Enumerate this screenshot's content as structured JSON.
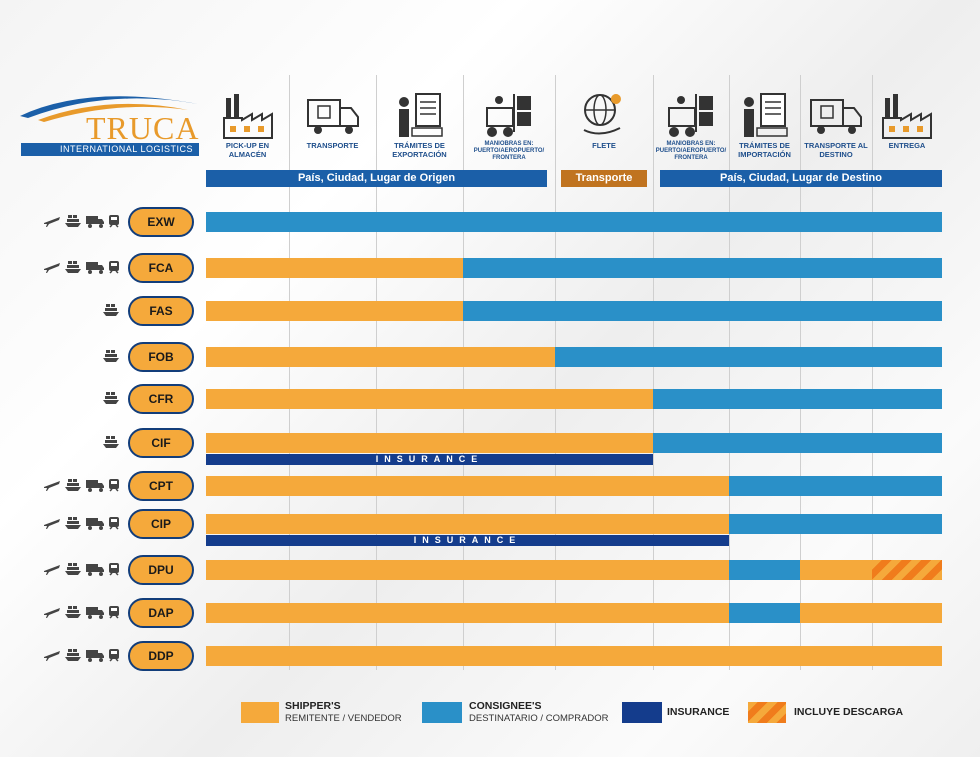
{
  "logo": {
    "name": "TRUCA",
    "subtitle": "INTERNATIONAL LOGISTICS"
  },
  "columns": [
    "PICK-UP EN ALMACÉN",
    "TRANSPORTE",
    "TRÁMITES DE EXPORTACIÓN",
    "MANIOBRAS EN: PUERTO/AEROPUERTO/ FRONTERA",
    "FLETE",
    "MANIOBRAS EN: PUERTO/AEROPUERTO/ FRONTERA",
    "TRÁMITES DE IMPORTACIÓN",
    "TRANSPORTE AL DESTINO",
    "ENTREGA"
  ],
  "bands": {
    "origin": "País, Ciudad, Lugar de Origen",
    "transport": "Transporte",
    "destination": "País, Ciudad, Lugar de Destino"
  },
  "insurance_label": "INSURANCE",
  "colors": {
    "shipper": "#f5a93b",
    "consignee": "#2a90c8",
    "insurance": "#143c8c",
    "band": "#1b5fa8",
    "transport_band": "#c0731f"
  },
  "incoterms": [
    {
      "code": "EXW",
      "modes": [
        "plane",
        "ship",
        "truck",
        "train"
      ],
      "split": 0,
      "insurance": null,
      "segments": [
        [
          "consignee",
          0,
          9
        ]
      ]
    },
    {
      "code": "FCA",
      "modes": [
        "plane",
        "ship",
        "truck",
        "train"
      ],
      "segments": [
        [
          "shipper",
          0,
          3
        ],
        [
          "consignee",
          3,
          9
        ]
      ]
    },
    {
      "code": "FAS",
      "modes": [
        "ship"
      ],
      "segments": [
        [
          "shipper",
          0,
          3
        ],
        [
          "consignee",
          3,
          9
        ]
      ]
    },
    {
      "code": "FOB",
      "modes": [
        "ship"
      ],
      "segments": [
        [
          "shipper",
          0,
          4
        ],
        [
          "consignee",
          4,
          9
        ]
      ]
    },
    {
      "code": "CFR",
      "modes": [
        "ship"
      ],
      "segments": [
        [
          "shipper",
          0,
          5
        ],
        [
          "consignee",
          5,
          9
        ]
      ]
    },
    {
      "code": "CIF",
      "modes": [
        "ship"
      ],
      "segments": [
        [
          "shipper",
          0,
          5
        ],
        [
          "consignee",
          5,
          9
        ]
      ],
      "insurance": [
        0,
        5
      ]
    },
    {
      "code": "CPT",
      "modes": [
        "plane",
        "ship",
        "truck",
        "train"
      ],
      "segments": [
        [
          "shipper",
          0,
          6
        ],
        [
          "consignee",
          6,
          9
        ]
      ]
    },
    {
      "code": "CIP",
      "modes": [
        "plane",
        "ship",
        "truck",
        "train"
      ],
      "segments": [
        [
          "shipper",
          0,
          6
        ],
        [
          "consignee",
          6,
          9
        ]
      ],
      "insurance": [
        0,
        6
      ]
    },
    {
      "code": "DPU",
      "modes": [
        "plane",
        "ship",
        "truck",
        "train"
      ],
      "segments": [
        [
          "shipper",
          0,
          6
        ],
        [
          "consignee",
          6,
          7
        ],
        [
          "shipper",
          7,
          8
        ],
        [
          "hatch",
          8,
          9
        ]
      ]
    },
    {
      "code": "DAP",
      "modes": [
        "plane",
        "ship",
        "truck",
        "train"
      ],
      "segments": [
        [
          "shipper",
          0,
          6
        ],
        [
          "consignee",
          6,
          7
        ],
        [
          "shipper",
          7,
          9
        ]
      ]
    },
    {
      "code": "DDP",
      "modes": [
        "plane",
        "ship",
        "truck",
        "train"
      ],
      "segments": [
        [
          "shipper",
          0,
          9
        ]
      ]
    }
  ],
  "legend": {
    "shipper_title": "SHIPPER'S",
    "shipper_sub": "REMITENTE / VENDEDOR",
    "consignee_title": "CONSIGNEE'S",
    "consignee_sub": "DESTINATARIO / COMPRADOR",
    "insurance": "INSURANCE",
    "unload": "INCLUYE DESCARGA"
  }
}
